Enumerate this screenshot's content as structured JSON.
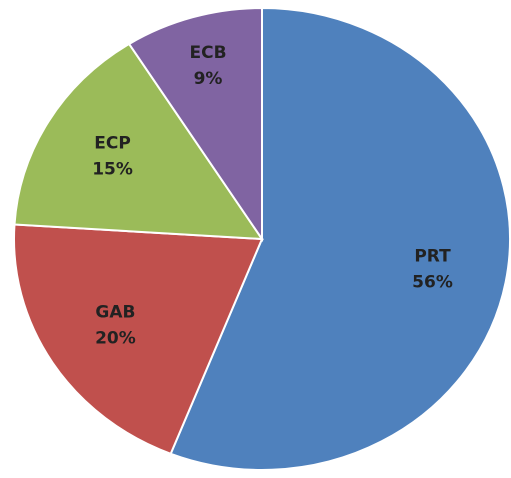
{
  "chart_data": {
    "type": "pie",
    "categories": [
      "PRT",
      "GAB",
      "ECP",
      "ECB"
    ],
    "values": [
      56,
      20,
      15,
      9
    ],
    "value_labels": [
      "56%",
      "20%",
      "15%",
      "9%"
    ],
    "colors": [
      "#4f81bd",
      "#c0504d",
      "#9bbb59",
      "#8064a2"
    ]
  }
}
